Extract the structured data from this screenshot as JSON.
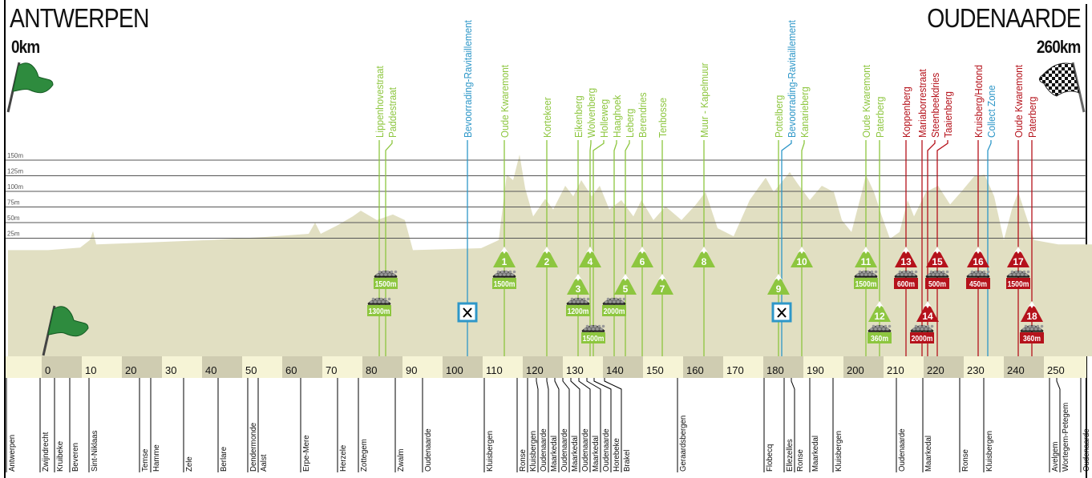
{
  "start": {
    "name": "ANTWERPEN",
    "distance": "0km"
  },
  "finish": {
    "name": "OUDENAARDE",
    "distance": "260km"
  },
  "colors": {
    "flandrien_climb": "#8dc63f",
    "final_climb": "#b5121b",
    "feed_zone": "#2e97c8",
    "profile": "#e1dfc2",
    "band_light": "#f6f4d6",
    "band_dark": "#cfccb1"
  },
  "chart_data": {
    "type": "area",
    "title": "",
    "xlabel": "",
    "ylabel": "",
    "xlim": [
      -10.5,
      260.5
    ],
    "ylim": [
      0,
      160
    ],
    "x_ticks": [
      0,
      10,
      20,
      30,
      40,
      50,
      60,
      70,
      80,
      90,
      100,
      110,
      120,
      130,
      140,
      150,
      160,
      170,
      180,
      190,
      200,
      210,
      220,
      230,
      240,
      250
    ],
    "y_ticks": [
      {
        "value": 25,
        "label": "25m"
      },
      {
        "value": 50,
        "label": "50m"
      },
      {
        "value": 75,
        "label": "75m"
      },
      {
        "value": 100,
        "label": "100m"
      },
      {
        "value": 125,
        "label": "125m"
      },
      {
        "value": 150,
        "label": "150m"
      }
    ],
    "grid": true,
    "profile": [
      [
        -10,
        6
      ],
      [
        0,
        6
      ],
      [
        8,
        10
      ],
      [
        10.4,
        22
      ],
      [
        11.2,
        36
      ],
      [
        12,
        15
      ],
      [
        24,
        18
      ],
      [
        40,
        22
      ],
      [
        54,
        27
      ],
      [
        65,
        32
      ],
      [
        66.6,
        50
      ],
      [
        68,
        32
      ],
      [
        72,
        45
      ],
      [
        76,
        60
      ],
      [
        78,
        69
      ],
      [
        82,
        54
      ],
      [
        86,
        63
      ],
      [
        89,
        54
      ],
      [
        91,
        6
      ],
      [
        108,
        9
      ],
      [
        112.4,
        22
      ],
      [
        114.4,
        127
      ],
      [
        116,
        118
      ],
      [
        117.6,
        159
      ],
      [
        119,
        105
      ],
      [
        121,
        60
      ],
      [
        124,
        88
      ],
      [
        126,
        71
      ],
      [
        129,
        109
      ],
      [
        131,
        92
      ],
      [
        133,
        118
      ],
      [
        135.6,
        92
      ],
      [
        137.6,
        109
      ],
      [
        140,
        71
      ],
      [
        143,
        86
      ],
      [
        146,
        60
      ],
      [
        148,
        86
      ],
      [
        151,
        54
      ],
      [
        154,
        76
      ],
      [
        158,
        54
      ],
      [
        161.6,
        79
      ],
      [
        164,
        99
      ],
      [
        167,
        41
      ],
      [
        171,
        28
      ],
      [
        175,
        86
      ],
      [
        179,
        122
      ],
      [
        181,
        99
      ],
      [
        185,
        131
      ],
      [
        187,
        112
      ],
      [
        190,
        86
      ],
      [
        193,
        109
      ],
      [
        196,
        99
      ],
      [
        198,
        54
      ],
      [
        200.4,
        35
      ],
      [
        203,
        99
      ],
      [
        204,
        127
      ],
      [
        206,
        99
      ],
      [
        208,
        60
      ],
      [
        210,
        24
      ],
      [
        212.4,
        35
      ],
      [
        214.4,
        86
      ],
      [
        216,
        60
      ],
      [
        219,
        99
      ],
      [
        222,
        109
      ],
      [
        225,
        79
      ],
      [
        228,
        101
      ],
      [
        231,
        124
      ],
      [
        233.6,
        127
      ],
      [
        236,
        92
      ],
      [
        238.4,
        22
      ],
      [
        240.4,
        71
      ],
      [
        242,
        99
      ],
      [
        244,
        60
      ],
      [
        246,
        22
      ],
      [
        252,
        15
      ],
      [
        260.4,
        15
      ]
    ],
    "labels": [
      {
        "text": "Lippenhovestraat",
        "km": 82.6,
        "type": "green"
      },
      {
        "text": "Paddestraat",
        "km": 84.2,
        "type": "green"
      },
      {
        "text": "Bevoorrading-Ravitaillement",
        "km": 104.6,
        "type": "feed"
      },
      {
        "text": "Oude Kwaremont",
        "km": 113.8,
        "type": "green"
      },
      {
        "text": "Kortekeer",
        "km": 124.4,
        "type": "green"
      },
      {
        "text": "Eikenberg",
        "km": 132.2,
        "type": "green"
      },
      {
        "text": "Wolvenberg",
        "km": 135.2,
        "type": "green"
      },
      {
        "text": "Holleweg",
        "km": 136.0,
        "type": "green"
      },
      {
        "text": "Haaghoek",
        "km": 141.2,
        "type": "green"
      },
      {
        "text": "Leberg",
        "km": 144.0,
        "type": "green"
      },
      {
        "text": "Berendries",
        "km": 148.2,
        "type": "green"
      },
      {
        "text": "Tenbosse",
        "km": 153.2,
        "type": "green"
      },
      {
        "text": "Muur - Kapelmuur",
        "km": 163.6,
        "type": "green"
      },
      {
        "text": "Pottelberg",
        "km": 182.2,
        "type": "green"
      },
      {
        "text": "Bevoorrading-Ravitaillement",
        "km": 183.0,
        "type": "feed"
      },
      {
        "text": "Kanarieberg",
        "km": 188.0,
        "type": "green"
      },
      {
        "text": "Oude Kwaremont",
        "km": 204.0,
        "type": "green"
      },
      {
        "text": "Paterberg",
        "km": 207.4,
        "type": "green"
      },
      {
        "text": "Koppenberg",
        "km": 214.0,
        "type": "red"
      },
      {
        "text": "Mariaborrestraat",
        "km": 218.0,
        "type": "red"
      },
      {
        "text": "Steenbeekdries",
        "km": 219.4,
        "type": "red"
      },
      {
        "text": "Taaienberg",
        "km": 221.8,
        "type": "red"
      },
      {
        "text": "Kruisberg/Hotond",
        "km": 232.0,
        "type": "red"
      },
      {
        "text": "Collect Zone",
        "km": 234.4,
        "type": "feed"
      },
      {
        "text": "Oude Kwaremont",
        "km": 242.0,
        "type": "red"
      },
      {
        "text": "Paterberg",
        "km": 245.4,
        "type": "red"
      }
    ],
    "climbs": [
      {
        "number": "1",
        "km": 113.8,
        "type": "green"
      },
      {
        "number": "2",
        "km": 124.4,
        "type": "green"
      },
      {
        "number": "3",
        "km": 132.2,
        "type": "green"
      },
      {
        "number": "4",
        "km": 135.2,
        "type": "green"
      },
      {
        "number": "5",
        "km": 144.0,
        "type": "green"
      },
      {
        "number": "6",
        "km": 148.2,
        "type": "green"
      },
      {
        "number": "7",
        "km": 153.2,
        "type": "green"
      },
      {
        "number": "8",
        "km": 163.6,
        "type": "green"
      },
      {
        "number": "9",
        "km": 182.2,
        "type": "green"
      },
      {
        "number": "10",
        "km": 188.0,
        "type": "green"
      },
      {
        "number": "11",
        "km": 204.0,
        "type": "green"
      },
      {
        "number": "12",
        "km": 207.4,
        "type": "green"
      },
      {
        "number": "13",
        "km": 214.0,
        "type": "red"
      },
      {
        "number": "14",
        "km": 219.4,
        "type": "red"
      },
      {
        "number": "15",
        "km": 221.8,
        "type": "red"
      },
      {
        "number": "16",
        "km": 232.0,
        "type": "red"
      },
      {
        "number": "17",
        "km": 242.0,
        "type": "red"
      },
      {
        "number": "18",
        "km": 245.4,
        "type": "red"
      }
    ],
    "cobbles": [
      {
        "length": "1300m",
        "km": 82.6,
        "type": "green"
      },
      {
        "length": "1500m",
        "km": 84.2,
        "type": "green"
      },
      {
        "length": "1500m",
        "km": 113.8,
        "type": "green"
      },
      {
        "length": "1200m",
        "km": 132.2,
        "type": "green"
      },
      {
        "length": "1500m",
        "km": 136.0,
        "type": "green"
      },
      {
        "length": "2000m",
        "km": 141.2,
        "type": "green"
      },
      {
        "length": "1500m",
        "km": 204.0,
        "type": "green"
      },
      {
        "length": "360m",
        "km": 207.4,
        "type": "green"
      },
      {
        "length": "600m",
        "km": 214.0,
        "type": "red"
      },
      {
        "length": "2000m",
        "km": 218.0,
        "type": "red"
      },
      {
        "length": "500m",
        "km": 221.8,
        "type": "red"
      },
      {
        "length": "450m",
        "km": 232.0,
        "type": "red"
      },
      {
        "length": "1500m",
        "km": 242.0,
        "type": "red"
      },
      {
        "length": "360m",
        "km": 245.4,
        "type": "red"
      }
    ],
    "feed_zones": [
      {
        "km": 104.6
      },
      {
        "km": 183.0
      }
    ],
    "towns": [
      {
        "name": "Antwerpen",
        "km": -10.4
      },
      {
        "name": "Zwijndrecht",
        "km": -2.0
      },
      {
        "name": "Kruibeke",
        "km": 1.6
      },
      {
        "name": "Beveren",
        "km": 5.4
      },
      {
        "name": "Sint-Niklaas",
        "km": 10.2
      },
      {
        "name": "Temse",
        "km": 22.8
      },
      {
        "name": "Hamme",
        "km": 25.6
      },
      {
        "name": "Zele",
        "km": 33.8
      },
      {
        "name": "Berlare",
        "km": 42.4
      },
      {
        "name": "Dendermonde",
        "km": 49.8
      },
      {
        "name": "Aalst",
        "km": 52.4
      },
      {
        "name": "Erpe-Mere",
        "km": 63.0
      },
      {
        "name": "Herzele",
        "km": 72.2
      },
      {
        "name": "Zottegem",
        "km": 77.4
      },
      {
        "name": "Zwalm",
        "km": 86.6
      },
      {
        "name": "Oudenaarde",
        "km": 93.4
      },
      {
        "name": "Kluisbergen",
        "km": 108.8
      },
      {
        "name": "Ronse",
        "km": 117.0
      },
      {
        "name": "Kluisbergen",
        "km": 119.6
      },
      {
        "name": "Oudenaarde",
        "km": 121.8
      },
      {
        "name": "Maarkedal",
        "km": 124.4
      },
      {
        "name": "Oudenaarde",
        "km": 126.4
      },
      {
        "name": "Maarkedal",
        "km": 128.4
      },
      {
        "name": "Oudenaarde",
        "km": 130.4
      },
      {
        "name": "Maarkedal",
        "km": 132.4
      },
      {
        "name": "Oudenaarde",
        "km": 134.4
      },
      {
        "name": "Horebeke",
        "km": 136.2
      },
      {
        "name": "Brakel",
        "km": 138.8
      },
      {
        "name": "Geraardsbergen",
        "km": 157.0
      },
      {
        "name": "Flobecq",
        "km": 178.6
      },
      {
        "name": "Ellezelles",
        "km": 183.6
      },
      {
        "name": "Ronse",
        "km": 185.4
      },
      {
        "name": "Maarkedal",
        "km": 190.0
      },
      {
        "name": "Kluisbergen",
        "km": 195.8
      },
      {
        "name": "Oudenaarde",
        "km": 211.6
      },
      {
        "name": "Maarkedal",
        "km": 218.2
      },
      {
        "name": "Ronse",
        "km": 227.4
      },
      {
        "name": "Kluisbergen",
        "km": 233.4
      },
      {
        "name": "Avelgem",
        "km": 249.8
      },
      {
        "name": "Wortegem-Petegem",
        "km": 251.6
      },
      {
        "name": "Oudenaarde",
        "km": 257.6
      }
    ]
  }
}
